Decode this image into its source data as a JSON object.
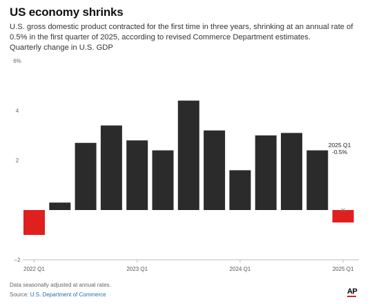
{
  "header": {
    "title": "US economy shrinks",
    "subtitle": "U.S. gross domestic product contracted for the first time in three years, shrinking at an annual rate of 0.5% in the first quarter of 2025, according to revised Commerce Department estimates.",
    "chart_label": "Quarterly change in U.S. GDP"
  },
  "footer": {
    "note": "Data seasonally adjusted at annual rates.",
    "source_prefix": "Source: ",
    "source_name": "U.S. Department of Commerce",
    "logo_text": "AP"
  },
  "colors": {
    "positive": "#2b2b2b",
    "negative": "#e01f1f",
    "axis": "#bdbdbd",
    "accent": "#e51b24"
  },
  "chart_data": {
    "type": "bar",
    "categories": [
      "2022 Q1",
      "2022 Q2",
      "2022 Q3",
      "2022 Q4",
      "2023 Q1",
      "2023 Q2",
      "2023 Q3",
      "2023 Q4",
      "2024 Q1",
      "2024 Q2",
      "2024 Q3",
      "2024 Q4",
      "2025 Q1"
    ],
    "values": [
      -1.0,
      0.3,
      2.7,
      3.4,
      2.8,
      2.4,
      4.4,
      3.2,
      1.6,
      3.0,
      3.1,
      2.4,
      -0.5
    ],
    "x_tick_labels": [
      "2022 Q1",
      "2023 Q1",
      "2024 Q1",
      "2025 Q1"
    ],
    "y_ticks": [
      {
        "value": 6,
        "label": "6%"
      },
      {
        "value": 4,
        "label": "4"
      },
      {
        "value": 2,
        "label": "2"
      },
      {
        "value": -2,
        "label": "−2"
      }
    ],
    "ylim": [
      -2,
      6
    ],
    "annotation": {
      "label": "2025 Q1",
      "value_label": "-0.5%"
    },
    "legend": "none",
    "grid": false
  }
}
